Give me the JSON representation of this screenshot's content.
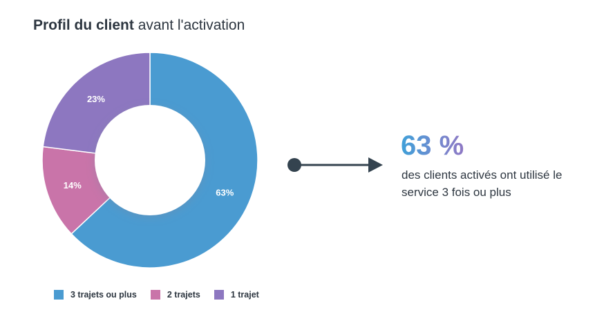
{
  "title": {
    "bold": "Profil du client",
    "light": "avant l'activation"
  },
  "chart_data": {
    "type": "pie",
    "title": "Profil du client avant l'activation",
    "categories": [
      "3 trajets ou plus",
      "2 trajets",
      "1 trajet"
    ],
    "values": [
      63,
      14,
      23
    ],
    "labels": [
      "63%",
      "14%",
      "23%"
    ],
    "colors": [
      "#4a9bd1",
      "#c974a9",
      "#8d77c0"
    ],
    "legend_placement": "bottom"
  },
  "legend": [
    {
      "label": "3 trajets ou plus",
      "color": "#4a9bd1"
    },
    {
      "label": "2 trajets",
      "color": "#c974a9"
    },
    {
      "label": "1 trajet",
      "color": "#8d77c0"
    }
  ],
  "kpi": {
    "value": "63 %",
    "caption": "des clients activés ont utilisé le service 3 fois ou plus"
  },
  "colors": {
    "arrow": "#34434f",
    "text": "#2d3640"
  }
}
